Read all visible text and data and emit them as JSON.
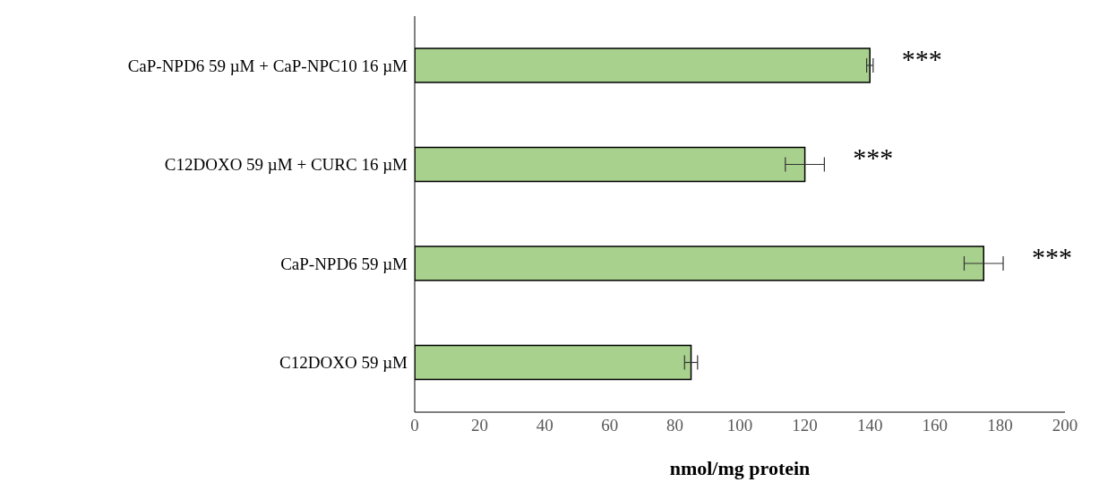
{
  "chart_data": {
    "type": "bar",
    "orientation": "horizontal",
    "xlabel": "nmol/mg protein",
    "categories": [
      "CaP-NPD6 59 µM + CaP-NPC10 16 µM",
      "C12DOXO 59 µM + CURC 16 µM",
      "CaP-NPD6 59 µM",
      "C12DOXO 59 µM"
    ],
    "values": [
      140,
      120,
      175,
      85
    ],
    "errors": [
      1,
      6,
      6,
      2
    ],
    "color": "#a9d18e",
    "xlim": [
      0,
      200
    ],
    "xticks": [
      0,
      20,
      40,
      60,
      80,
      100,
      120,
      140,
      160,
      180,
      200
    ],
    "grid": false,
    "legend": false,
    "annotations": [
      "***",
      "***",
      "***"
    ]
  }
}
